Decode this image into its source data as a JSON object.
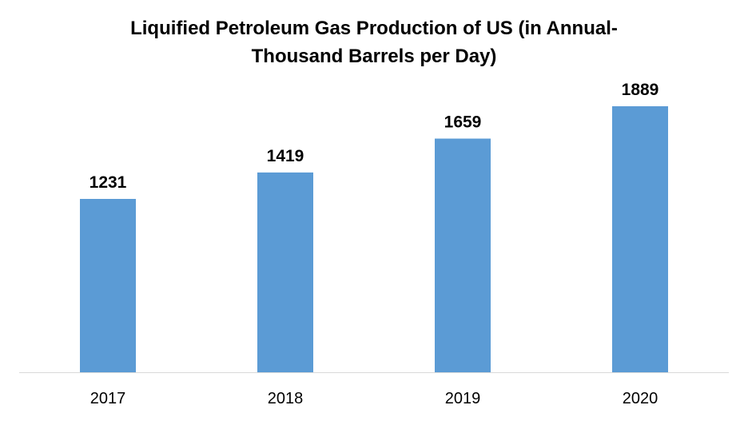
{
  "chart_data": {
    "type": "bar",
    "title": [
      "Liquified Petroleum Gas Production of US (in Annual-",
      "Thousand Barrels per Day)"
    ],
    "categories": [
      "2017",
      "2018",
      "2019",
      "2020"
    ],
    "values": [
      1231,
      1419,
      1659,
      1889
    ],
    "data_labels": [
      "1231",
      "1419",
      "1659",
      "1889"
    ],
    "ylim": [
      0,
      1889
    ],
    "grid": false,
    "legend": "none",
    "bar_color": "#5B9BD5",
    "axis_color": "#D9D9D9"
  }
}
